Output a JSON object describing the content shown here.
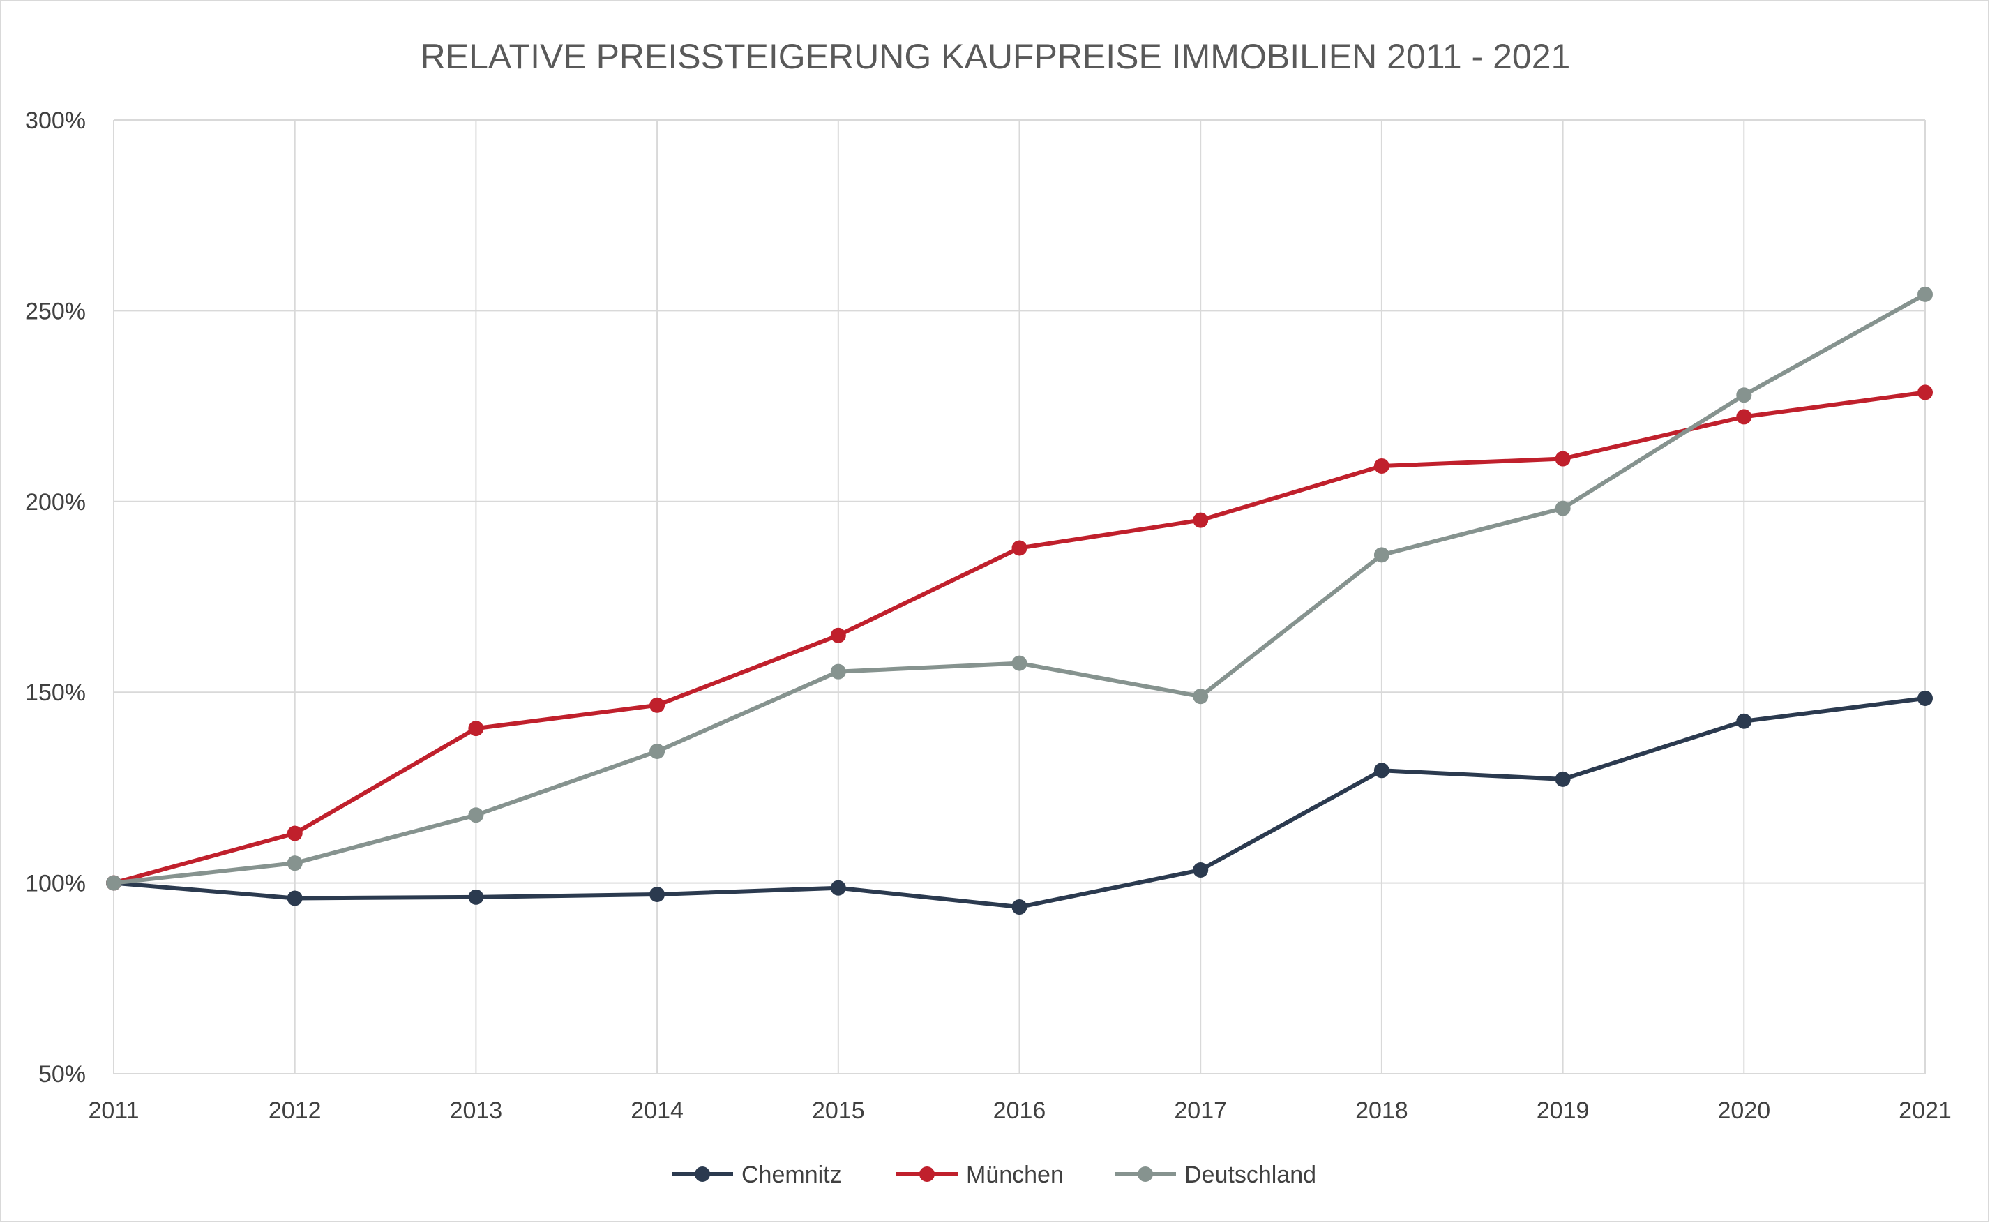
{
  "chart_data": {
    "type": "line",
    "title": "RELATIVE PREISSTEIGERUNG KAUFPREISE IMMOBILIEN 2011 - 2021",
    "xlabel": "",
    "ylabel": "",
    "categories": [
      "2011",
      "2012",
      "2013",
      "2014",
      "2015",
      "2016",
      "2017",
      "2018",
      "2019",
      "2020",
      "2021"
    ],
    "ylim": [
      50,
      300
    ],
    "yticks": [
      50,
      100,
      150,
      200,
      250,
      300
    ],
    "ytick_labels": [
      "50%",
      "100%",
      "150%",
      "200%",
      "250%",
      "300%"
    ],
    "grid": true,
    "legend_position": "bottom",
    "series": [
      {
        "name": "Chemnitz",
        "color": "#2b3a4f",
        "values": [
          100,
          96,
          96.3,
          97,
          98.7,
          93.7,
          103.4,
          129.5,
          127.2,
          142.4,
          148.4
        ]
      },
      {
        "name": "München",
        "color": "#c0202c",
        "values": [
          100,
          113,
          140.5,
          146.6,
          164.9,
          187.8,
          195.1,
          209.3,
          211.2,
          222.2,
          228.6
        ]
      },
      {
        "name": "Deutschland",
        "color": "#86938f",
        "values": [
          100,
          105.2,
          117.8,
          134.5,
          155.4,
          157.6,
          148.9,
          186,
          198.2,
          227.9,
          254.3
        ]
      }
    ]
  }
}
